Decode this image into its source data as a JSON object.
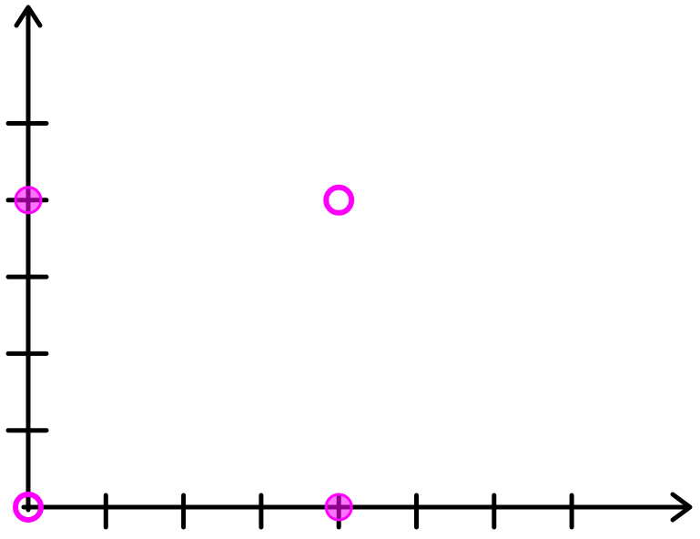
{
  "chart_data": {
    "type": "scatter",
    "title": "",
    "xlabel": "",
    "ylabel": "",
    "xlim": [
      0,
      8.5
    ],
    "ylim": [
      0,
      6.3
    ],
    "x_ticks": [
      1,
      2,
      3,
      4,
      5,
      6,
      7
    ],
    "y_ticks": [
      1,
      2,
      3,
      4,
      5
    ],
    "grid": false,
    "legend": "none",
    "axis_arrows": true,
    "marker_color": "#ff00ff",
    "points": [
      {
        "x": 0,
        "y": 0,
        "style": "open-circle"
      },
      {
        "x": 4,
        "y": 4,
        "style": "open-circle"
      },
      {
        "x": 0,
        "y": 4,
        "style": "filled-circle"
      },
      {
        "x": 4,
        "y": 0,
        "style": "filled-circle"
      }
    ]
  }
}
